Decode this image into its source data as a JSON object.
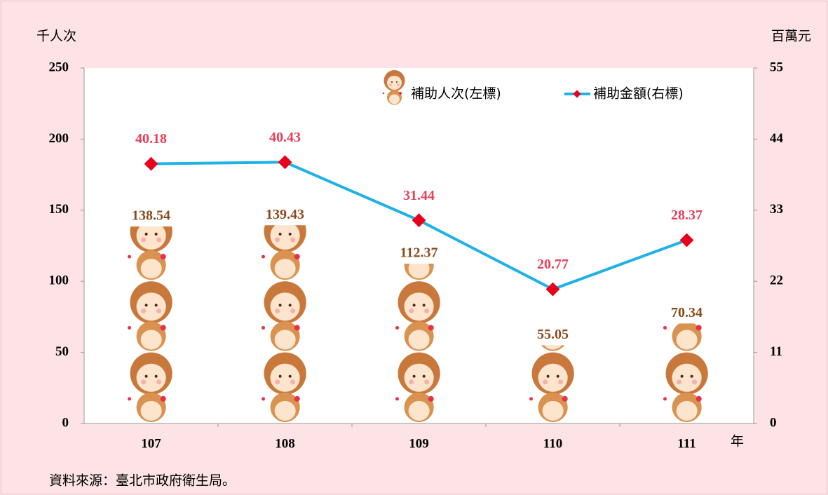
{
  "chart_data": {
    "type": "pictograph-bar-line",
    "y_label": "千人次",
    "y2_label": "百萬元",
    "x_label": "年",
    "source": "資料來源：臺北市政府衛生局。",
    "categories": [
      "107",
      "108",
      "109",
      "110",
      "111"
    ],
    "series": [
      {
        "name": "補助人次(左標)",
        "color": "#8b4a1c",
        "values": [
          138.54,
          139.43,
          112.37,
          55.05,
          70.34
        ]
      },
      {
        "name": "補助金額(右標)",
        "color": "#1fb2e6",
        "marker_color": "#e8001c",
        "label_color": "#e8405a",
        "axis": "y2",
        "values": [
          40.18,
          40.43,
          31.44,
          20.77,
          28.37
        ]
      }
    ],
    "ylim": [
      0,
      250
    ],
    "yticks": [
      0,
      50,
      100,
      150,
      200,
      250
    ],
    "y2lim": [
      0,
      55
    ],
    "y2ticks": [
      0,
      11,
      22,
      33,
      44,
      55
    ]
  }
}
